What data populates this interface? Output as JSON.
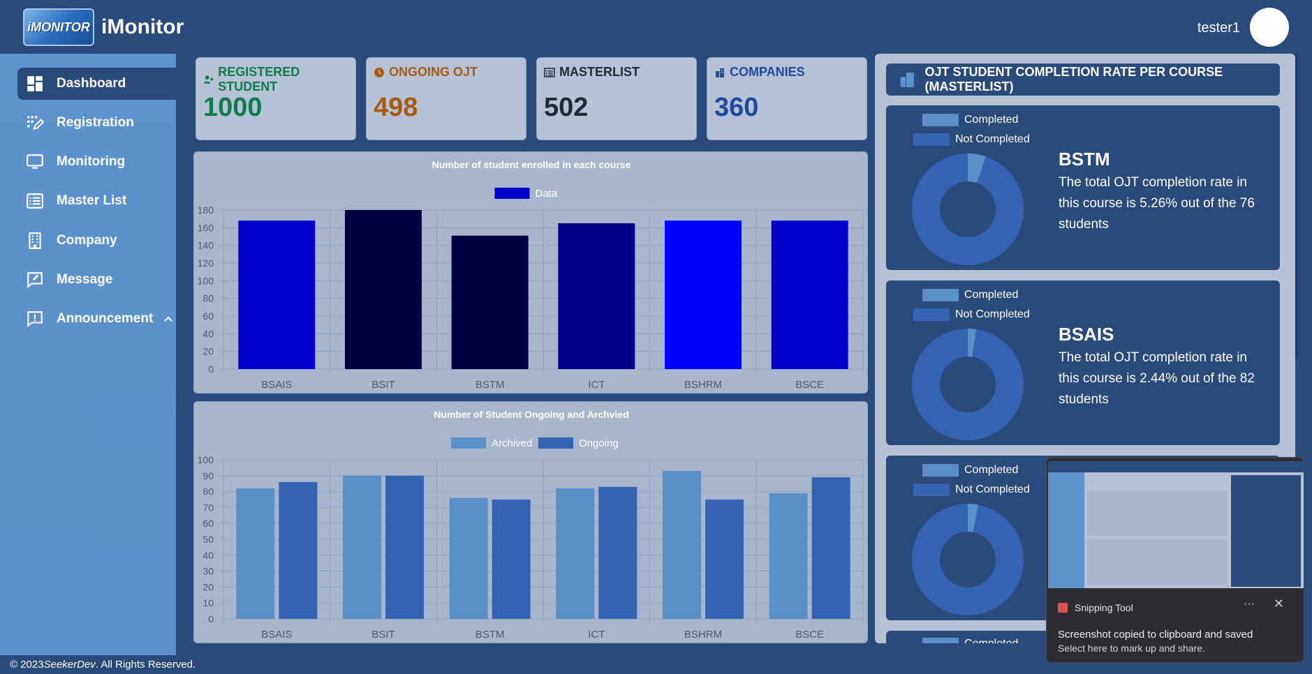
{
  "header": {
    "logo_text": "iMONITOR",
    "title": "iMonitor",
    "username": "tester1"
  },
  "sidebar": {
    "items": [
      {
        "label": "Dashboard",
        "icon": "dashboard-icon",
        "active": true
      },
      {
        "label": "Registration",
        "icon": "registration-icon"
      },
      {
        "label": "Monitoring",
        "icon": "monitor-icon"
      },
      {
        "label": "Master List",
        "icon": "list-icon"
      },
      {
        "label": "Company",
        "icon": "building-icon"
      },
      {
        "label": "Message",
        "icon": "message-icon"
      },
      {
        "label": "Announcement",
        "icon": "announcement-icon"
      }
    ]
  },
  "stats": [
    {
      "label": "REGISTERED STUDENT",
      "value": "1000",
      "color": "#0f7a4e",
      "icon": "user-plus-icon"
    },
    {
      "label": "ONGOING OJT",
      "value": "498",
      "color": "#a85a10",
      "icon": "clock-icon"
    },
    {
      "label": "MASTERLIST",
      "value": "502",
      "color": "#1e2a3a",
      "icon": "list-icon"
    },
    {
      "label": "COMPANIES",
      "value": "360",
      "color": "#1f4aa0",
      "icon": "building-icon"
    }
  ],
  "chart_data": [
    {
      "type": "bar",
      "title": "Number of student enrolled in each course",
      "categories": [
        "BSAIS",
        "BSIT",
        "BSTM",
        "ICT",
        "BSHRM",
        "BSCE"
      ],
      "series": [
        {
          "name": "Data",
          "values": [
            168,
            180,
            151,
            165,
            168,
            168
          ]
        }
      ],
      "bar_colors": [
        "#0000cc",
        "#000040",
        "#000040",
        "#000088",
        "#0000ff",
        "#0000cc"
      ],
      "legend_color": "#0000cc",
      "ylim": [
        0,
        180
      ],
      "yticks": [
        0,
        20,
        40,
        60,
        80,
        100,
        120,
        140,
        160,
        180
      ],
      "grid": true,
      "legend": "top"
    },
    {
      "type": "bar",
      "title": "Number of Student Ongoing and Archvied",
      "categories": [
        "BSAIS",
        "BSIT",
        "BSTM",
        "ICT",
        "BSHRM",
        "BSCE"
      ],
      "series": [
        {
          "name": "Archived",
          "values": [
            82,
            90,
            76,
            82,
            93,
            79
          ],
          "color": "#5a8fc8"
        },
        {
          "name": "Ongoing",
          "values": [
            86,
            90,
            75,
            83,
            75,
            89
          ],
          "color": "#3563b3"
        }
      ],
      "ylim": [
        0,
        100
      ],
      "yticks": [
        0,
        10,
        20,
        30,
        40,
        50,
        60,
        70,
        80,
        90,
        100
      ],
      "grid": true,
      "legend": "top"
    }
  ],
  "completion": {
    "title": "OJT STUDENT COMPLETION RATE PER COURSE (MASTERLIST)",
    "legend_completed": "Completed",
    "legend_not_completed": "Not Completed",
    "completed_color": "#5a8fc8",
    "not_completed_color": "#3563b3",
    "courses": [
      {
        "name": "BSTM",
        "rate": 5.26,
        "desc": "The total OJT completion rate in this course is 5.26% out of the 76 students"
      },
      {
        "name": "BSAIS",
        "rate": 2.44,
        "desc": "The total OJT completion rate in this course is 2.44% out of the 82 students"
      },
      {
        "name": "",
        "rate": 3.0,
        "desc": ""
      }
    ],
    "peek_label": "Completed"
  },
  "footer": {
    "copyright": "© 2023 ",
    "brand": "SeekerDev",
    "rest": ". All Rights Reserved."
  },
  "toast": {
    "app": "Snipping Tool",
    "more": "···",
    "close": "✕",
    "message": "Screenshot copied to clipboard and saved",
    "sub": "Select here to mark up and share."
  }
}
